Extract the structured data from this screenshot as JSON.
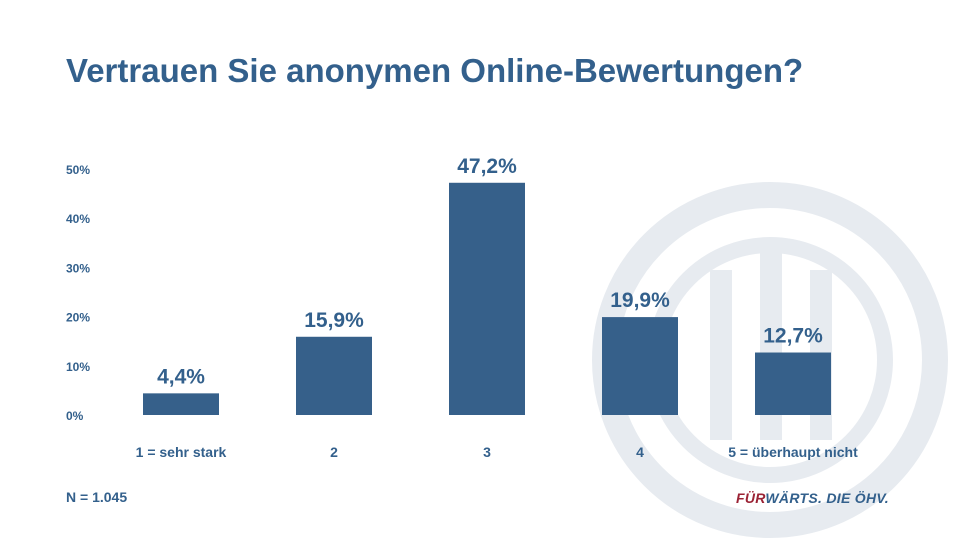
{
  "title": "Vertrauen Sie anonymen Online-Bewertungen?",
  "note": "N = 1.045",
  "brand": {
    "part1": "FÜR",
    "part2": "WÄRTS. DIE ÖHV."
  },
  "colors": {
    "bar": "#36608a",
    "text": "#33608c",
    "brand_red": "#9b2335",
    "watermark": "#e7ebf0"
  },
  "chart_data": {
    "type": "bar",
    "categories": [
      "1 = sehr stark",
      "2",
      "3",
      "4",
      "5 = überhaupt nicht"
    ],
    "values": [
      4.4,
      15.9,
      47.2,
      19.9,
      12.7
    ],
    "value_labels": [
      "4,4%",
      "15,9%",
      "47,2%",
      "19,9%",
      "12,7%"
    ],
    "title": "",
    "xlabel": "",
    "ylabel": "",
    "ylim": [
      0,
      50
    ],
    "yticks": [
      0,
      10,
      20,
      30,
      40,
      50
    ],
    "ytick_labels": [
      "0%",
      "10%",
      "20%",
      "30%",
      "40%",
      "50%"
    ],
    "grid": false,
    "legend": "none"
  }
}
